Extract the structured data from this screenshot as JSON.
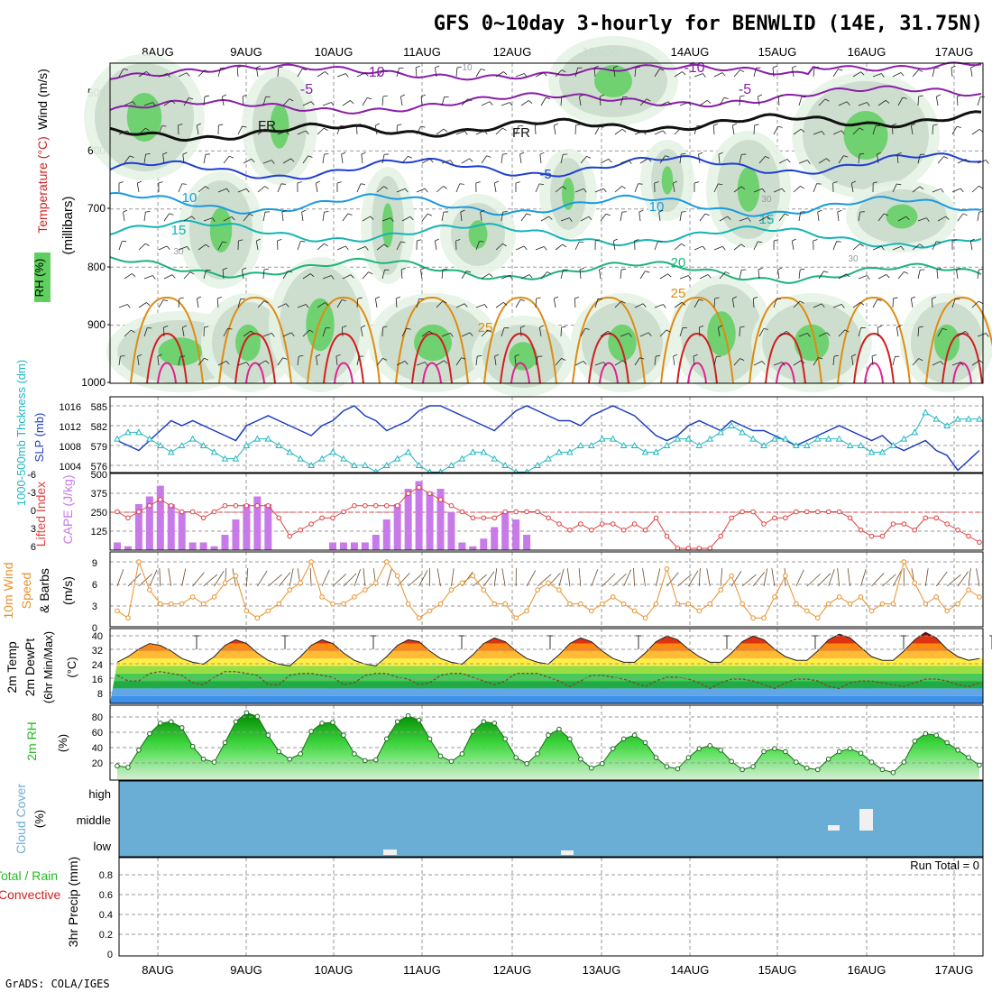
{
  "title": "GFS 0~10day 3-hourly for BENWLID (14E, 31.75N)",
  "footer": "GrADS: COLA/IGES",
  "dates": [
    "8AUG",
    "9AUG",
    "10AUG",
    "11AUG",
    "12AUG",
    "13AUG",
    "14AUG",
    "15AUG",
    "16AUG",
    "17AUG"
  ],
  "colors": {
    "purple": "#8a1ea8",
    "black": "#111111",
    "blue": "#1f3fd0",
    "lightblue": "#1a9ae0",
    "teal": "#16b4b4",
    "green": "#1db37a",
    "orange": "#e08a10",
    "red": "#d02020",
    "cape": "#c87ae8",
    "li": "#e04040",
    "slp": "#1a3cc0",
    "thick": "#20b8c0",
    "wind10": "#e8902a",
    "rh2m": "#22bb22",
    "cloud": "#6aaed6",
    "grid": "#999999"
  },
  "panels": {
    "upper_air": {
      "y_axis_label": "(millibars)",
      "ticks": [
        "500",
        "600",
        "700",
        "800",
        "900",
        "1000"
      ],
      "labels": {
        "wind": "Wind (m/s)",
        "temp": "Temperature (°C)",
        "rh": "RH (%)"
      },
      "contour_labels": [
        "-10",
        "-10",
        "-5",
        "-5",
        "FR",
        "FR",
        "-5",
        "10",
        "10",
        "15",
        "15",
        "20",
        "25",
        "25",
        "30",
        "30",
        "30",
        "10"
      ]
    },
    "slp_thickness": {
      "labels": {
        "thickness": "1000-500mb Thckness (dm)",
        "slp": "SLP (mb)"
      },
      "left_ticks": [
        "585",
        "582",
        "579",
        "576"
      ],
      "right_ticks": [
        "1016",
        "1012",
        "1008",
        "1004"
      ]
    },
    "cape_li": {
      "labels": {
        "li": "Lifted Index",
        "cape": "CAPE (J/kg)"
      },
      "left_ticks": [
        "-6",
        "-3",
        "0",
        "3",
        "6"
      ],
      "right_ticks": [
        "500",
        "375",
        "250",
        "125"
      ]
    },
    "wind10m": {
      "labels": {
        "a": "10m Wind",
        "b": "Speed",
        "c": "& Barbs"
      },
      "unit": "(m/s)",
      "ticks": [
        "9",
        "6",
        "3",
        "0"
      ]
    },
    "temp2m": {
      "labels": {
        "a": "2m Temp",
        "b": "2m DewPt",
        "c": "(6hr Min/Max)"
      },
      "unit": "(°C)",
      "ticks": [
        "40",
        "32",
        "24",
        "16",
        "8"
      ]
    },
    "rh2m": {
      "label": "2m RH",
      "unit": "(%)",
      "ticks": [
        "80",
        "60",
        "40",
        "20"
      ]
    },
    "cloud": {
      "labels": {
        "a": "Cloud Cover",
        "b": "(%)"
      },
      "levels": [
        "high",
        "middle",
        "low"
      ]
    },
    "precip": {
      "labels": {
        "total": "Total / Rain",
        "conv": "Convective",
        "axis": "3hr Precip (mm)"
      },
      "run_total": "Run Total = 0",
      "ticks": [
        "0.8",
        "0.6",
        "0.4",
        "0.2",
        "0"
      ]
    }
  },
  "chart_data": [
    {
      "type": "line",
      "title": "SLP and 1000-500mb Thickness",
      "x": "3-hourly steps 0..80",
      "series": [
        {
          "name": "SLP (mb)",
          "values": [
            1009,
            1008,
            1007,
            1009,
            1011,
            1013,
            1012,
            1013,
            1012,
            1011,
            1010,
            1009,
            1012,
            1013,
            1014,
            1013,
            1012,
            1011,
            1010,
            1012,
            1013,
            1015,
            1016,
            1014,
            1013,
            1011,
            1012,
            1013,
            1015,
            1016,
            1016,
            1015,
            1014,
            1013,
            1012,
            1011,
            1013,
            1015,
            1016,
            1015,
            1014,
            1013,
            1013,
            1012,
            1014,
            1015,
            1016,
            1015,
            1014,
            1012,
            1010,
            1009,
            1010,
            1012,
            1013,
            1012,
            1011,
            1013,
            1012,
            1011,
            1011,
            1010,
            1009,
            1008,
            1009,
            1010,
            1011,
            1012,
            1011,
            1010,
            1009,
            1010,
            1008,
            1007,
            1008,
            1009,
            1007,
            1006,
            1003,
            1005,
            1007
          ]
        },
        {
          "name": "Thickness (dm)",
          "values": [
            580,
            581,
            581,
            580,
            579,
            578,
            579,
            580,
            579,
            578,
            577,
            577,
            579,
            580,
            580,
            579,
            578,
            577,
            576,
            577,
            578,
            577,
            576,
            576,
            575,
            576,
            577,
            578,
            576,
            575,
            575,
            576,
            577,
            578,
            578,
            577,
            576,
            575,
            575,
            576,
            577,
            578,
            578,
            579,
            579,
            580,
            580,
            579,
            579,
            578,
            578,
            579,
            580,
            580,
            579,
            580,
            581,
            582,
            581,
            580,
            579,
            580,
            580,
            579,
            579,
            580,
            580,
            580,
            579,
            579,
            578,
            578,
            579,
            580,
            581,
            584,
            583,
            582,
            583,
            583,
            583
          ]
        }
      ]
    },
    {
      "type": "bar",
      "title": "CAPE (J/kg) and Lifted Index",
      "series": [
        {
          "name": "CAPE (J/kg)",
          "values": [
            50,
            25,
            300,
            350,
            420,
            300,
            250,
            50,
            50,
            25,
            100,
            200,
            300,
            350,
            300,
            0,
            0,
            0,
            0,
            0,
            50,
            50,
            50,
            50,
            100,
            200,
            300,
            400,
            450,
            380,
            400,
            250,
            50,
            25,
            75,
            150,
            250,
            200,
            100,
            0,
            0,
            0,
            0,
            0,
            0,
            0,
            0,
            0,
            0,
            0,
            0,
            0,
            0,
            0,
            0,
            0,
            0,
            0,
            0,
            0,
            0,
            0,
            0,
            0,
            0,
            0,
            0,
            0,
            0,
            0,
            0,
            0,
            0,
            0,
            0,
            0,
            0,
            0,
            0,
            0,
            0
          ]
        },
        {
          "name": "Lifted Index",
          "values": [
            0,
            1,
            0,
            -1,
            -2,
            -1,
            0,
            0,
            1,
            0,
            -1,
            -1,
            -1,
            -1,
            -1,
            1,
            4,
            3,
            2,
            1,
            1,
            0,
            -1,
            -1,
            -1,
            -1,
            -1,
            -3,
            -4,
            -3,
            -2,
            -1,
            0,
            1,
            1,
            1,
            0,
            0,
            0,
            0,
            1,
            2,
            3,
            2,
            3,
            2,
            2,
            3,
            2,
            3,
            1,
            4,
            6,
            6,
            6,
            6,
            4,
            1,
            0,
            0,
            2,
            1,
            1,
            0,
            0,
            0,
            0,
            0,
            1,
            3,
            4,
            4,
            2,
            2,
            3,
            1,
            1,
            2,
            3,
            4,
            5
          ]
        }
      ]
    },
    {
      "type": "line",
      "title": "10m Wind Speed (m/s)",
      "series": [
        {
          "name": "10m Wind Speed",
          "values": [
            2,
            1,
            9,
            5,
            3,
            3,
            3,
            4,
            3,
            4,
            6,
            7,
            2,
            1,
            2,
            3,
            5,
            6,
            9,
            4,
            3,
            3,
            4,
            5,
            6,
            9,
            7,
            3,
            1,
            2,
            3,
            5,
            6,
            7,
            5,
            3,
            3,
            1,
            2,
            5,
            6,
            5,
            3,
            3,
            2,
            3,
            4,
            3,
            2,
            1,
            3,
            8,
            3,
            3,
            2,
            3,
            5,
            7,
            3,
            1,
            1,
            4,
            7,
            3,
            2,
            1,
            3,
            4,
            3,
            4,
            2,
            3,
            3,
            9,
            6,
            3,
            4,
            2,
            3,
            5,
            4
          ]
        }
      ]
    },
    {
      "type": "area",
      "title": "2m Temp and DewPt (°C)",
      "series": [
        {
          "name": "2m Temp",
          "values": [
            24,
            27,
            31,
            34,
            33,
            30,
            26,
            24,
            23,
            27,
            33,
            36,
            34,
            29,
            25,
            23,
            22,
            27,
            33,
            36,
            34,
            29,
            25,
            23,
            22,
            27,
            33,
            36,
            35,
            30,
            26,
            24,
            23,
            28,
            34,
            37,
            35,
            30,
            26,
            24,
            23,
            28,
            34,
            37,
            35,
            30,
            26,
            24,
            24,
            29,
            35,
            38,
            36,
            31,
            27,
            24,
            24,
            29,
            35,
            38,
            36,
            31,
            27,
            25,
            25,
            30,
            36,
            39,
            37,
            32,
            27,
            25,
            25,
            30,
            36,
            40,
            37,
            31,
            27,
            25,
            26
          ]
        },
        {
          "name": "2m DewPt",
          "values": [
            17,
            14,
            14,
            18,
            19,
            18,
            17,
            13,
            12,
            16,
            19,
            19,
            18,
            17,
            12,
            12,
            17,
            18,
            18,
            17,
            16,
            12,
            13,
            17,
            18,
            18,
            16,
            15,
            12,
            13,
            17,
            18,
            18,
            16,
            14,
            12,
            14,
            18,
            18,
            18,
            16,
            14,
            11,
            14,
            17,
            17,
            16,
            15,
            13,
            11,
            14,
            16,
            16,
            15,
            13,
            10,
            13,
            15,
            15,
            14,
            12,
            10,
            13,
            15,
            15,
            14,
            11,
            10,
            13,
            14,
            14,
            13,
            12,
            11,
            13,
            15,
            15,
            14,
            12,
            11,
            13
          ]
        }
      ]
    },
    {
      "type": "area",
      "title": "2m RH (%)",
      "series": [
        {
          "name": "2m RH",
          "values": [
            19,
            17,
            40,
            62,
            76,
            78,
            70,
            45,
            28,
            24,
            50,
            78,
            90,
            85,
            60,
            38,
            28,
            35,
            65,
            76,
            77,
            60,
            35,
            26,
            27,
            55,
            78,
            86,
            80,
            55,
            32,
            25,
            35,
            65,
            78,
            76,
            55,
            30,
            22,
            35,
            60,
            68,
            55,
            28,
            16,
            22,
            42,
            55,
            60,
            50,
            30,
            18,
            15,
            30,
            42,
            46,
            40,
            25,
            14,
            18,
            38,
            42,
            38,
            24,
            16,
            14,
            28,
            38,
            42,
            36,
            24,
            14,
            10,
            24,
            52,
            62,
            60,
            50,
            40,
            30,
            20
          ]
        }
      ]
    },
    {
      "type": "bar",
      "title": "3hr Precip (mm)",
      "ylim": [
        0,
        1
      ],
      "series": [
        {
          "name": "Total / Rain",
          "values": []
        },
        {
          "name": "Convective",
          "values": []
        }
      ]
    }
  ]
}
